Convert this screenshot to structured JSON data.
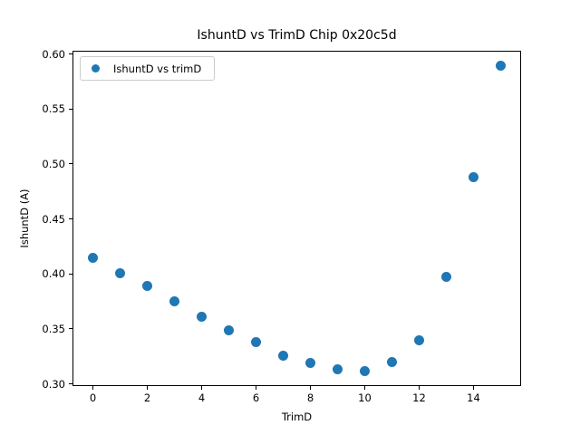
{
  "figure": {
    "background": "#ffffff"
  },
  "chart_data": {
    "type": "scatter",
    "title": "IshuntD vs TrimD Chip 0x20c5d",
    "xlabel": "TrimD",
    "ylabel": "IshuntD (A)",
    "legend": {
      "position": "upper left",
      "entries": [
        {
          "label": "IshuntD vs trimD",
          "marker": "circle",
          "color": "#1f77b4"
        }
      ]
    },
    "marker_color": "#1f77b4",
    "grid": false,
    "x": [
      0,
      1,
      2,
      3,
      4,
      5,
      6,
      7,
      8,
      9,
      10,
      11,
      12,
      13,
      14,
      15
    ],
    "y": [
      0.415,
      0.401,
      0.389,
      0.375,
      0.361,
      0.349,
      0.338,
      0.326,
      0.319,
      0.313,
      0.312,
      0.32,
      0.34,
      0.397,
      0.488,
      0.589
    ],
    "xlim": [
      -0.75,
      15.75
    ],
    "ylim": [
      0.298,
      0.603
    ],
    "x_ticks": {
      "values": [
        0,
        2,
        4,
        6,
        8,
        10,
        12,
        14
      ],
      "labels": [
        "0",
        "2",
        "4",
        "6",
        "8",
        "10",
        "12",
        "14"
      ]
    },
    "y_ticks": {
      "values": [
        0.3,
        0.35,
        0.4,
        0.45,
        0.5,
        0.55,
        0.6
      ],
      "labels": [
        "0.30",
        "0.35",
        "0.40",
        "0.45",
        "0.50",
        "0.55",
        "0.60"
      ]
    }
  }
}
